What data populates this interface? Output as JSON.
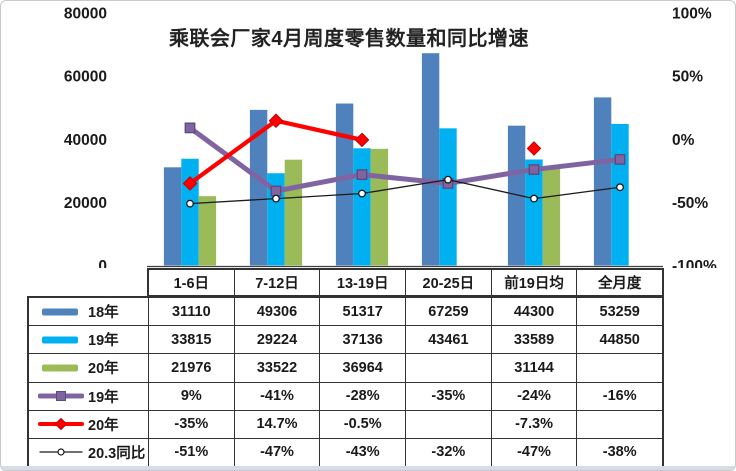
{
  "title": "乘联会厂家4月周度零售数量和同比增速",
  "chart_data": {
    "type": "combo-bar-line",
    "categories": [
      "1-6日",
      "7-12日",
      "13-19日",
      "20-25日",
      "前19日均",
      "全月度"
    ],
    "bar_series": [
      {
        "name": "18年",
        "color": "#4F81BD",
        "values": [
          31110,
          49306,
          51317,
          67259,
          44300,
          53259
        ]
      },
      {
        "name": "19年",
        "color": "#00B0F0",
        "values": [
          33815,
          29224,
          37136,
          43461,
          33589,
          44850
        ]
      },
      {
        "name": "20年",
        "color": "#9BBB59",
        "values": [
          21976,
          33522,
          36964,
          null,
          31144,
          null
        ]
      }
    ],
    "line_series": [
      {
        "name": "19年",
        "color": "#8064A2",
        "marker": "square",
        "marker_stroke": "#5E4A80",
        "stroke_width": 5,
        "values": [
          9,
          -41,
          -28,
          -35,
          -24,
          -16
        ]
      },
      {
        "name": "20年",
        "color": "#FF0000",
        "marker": "diamond",
        "marker_stroke": "#C00000",
        "stroke_width": 4.25,
        "values": [
          -35,
          14.7,
          -0.5,
          null,
          -7.3,
          null
        ]
      },
      {
        "name": "20.3同比",
        "color": "#1a1a1a",
        "marker": "circle",
        "marker_stroke": "#1a1a1a",
        "stroke_width": 1.3,
        "values": [
          -51,
          -47,
          -43,
          -32,
          -47,
          -38
        ]
      }
    ],
    "left_axis": {
      "min": 0,
      "max": 80000,
      "ticks_top_to_bottom": [
        "80000",
        "60000",
        "40000",
        "20000",
        "0"
      ]
    },
    "right_axis": {
      "min": -100,
      "max": 100,
      "ticks_top_to_bottom": [
        "100%",
        "50%",
        "0%",
        "-50%",
        "-100%"
      ]
    },
    "grid": false,
    "legend_position": "table-left-column"
  },
  "table": {
    "column_headers": [
      "1-6日",
      "7-12日",
      "13-19日",
      "20-25日",
      "前19日均",
      "全月度"
    ],
    "rows": [
      {
        "label": "18年",
        "legend": {
          "kind": "bar",
          "color": "#4F81BD"
        },
        "cells": [
          "31110",
          "49306",
          "51317",
          "67259",
          "44300",
          "53259"
        ]
      },
      {
        "label": "19年",
        "legend": {
          "kind": "bar",
          "color": "#00B0F0"
        },
        "cells": [
          "33815",
          "29224",
          "37136",
          "43461",
          "33589",
          "44850"
        ]
      },
      {
        "label": "20年",
        "legend": {
          "kind": "bar",
          "color": "#9BBB59"
        },
        "cells": [
          "21976",
          "33522",
          "36964",
          "",
          "31144",
          ""
        ]
      },
      {
        "label": "19年",
        "legend": {
          "kind": "line",
          "color": "#8064A2",
          "marker": "square",
          "stroke_width": 5
        },
        "cells": [
          "9%",
          "-41%",
          "-28%",
          "-35%",
          "-24%",
          "-16%"
        ]
      },
      {
        "label": "20年",
        "legend": {
          "kind": "line",
          "color": "#FF0000",
          "marker": "diamond",
          "stroke_width": 4
        },
        "cells": [
          "-35%",
          "14.7%",
          "-0.5%",
          "",
          "-7.3%",
          ""
        ]
      },
      {
        "label": "20.3同比",
        "legend": {
          "kind": "line",
          "color": "#1a1a1a",
          "marker": "circle",
          "stroke_width": 1.3
        },
        "cells": [
          "-51%",
          "-47%",
          "-43%",
          "-32%",
          "-47%",
          "-38%"
        ]
      }
    ]
  },
  "colors": {
    "bar_18": "#4F81BD",
    "bar_19": "#00B0F0",
    "bar_20": "#9BBB59",
    "line_19": "#8064A2",
    "line_20": "#FF0000",
    "line_203": "#1a1a1a",
    "table_border": "#333333",
    "axis_line": "#404040"
  }
}
